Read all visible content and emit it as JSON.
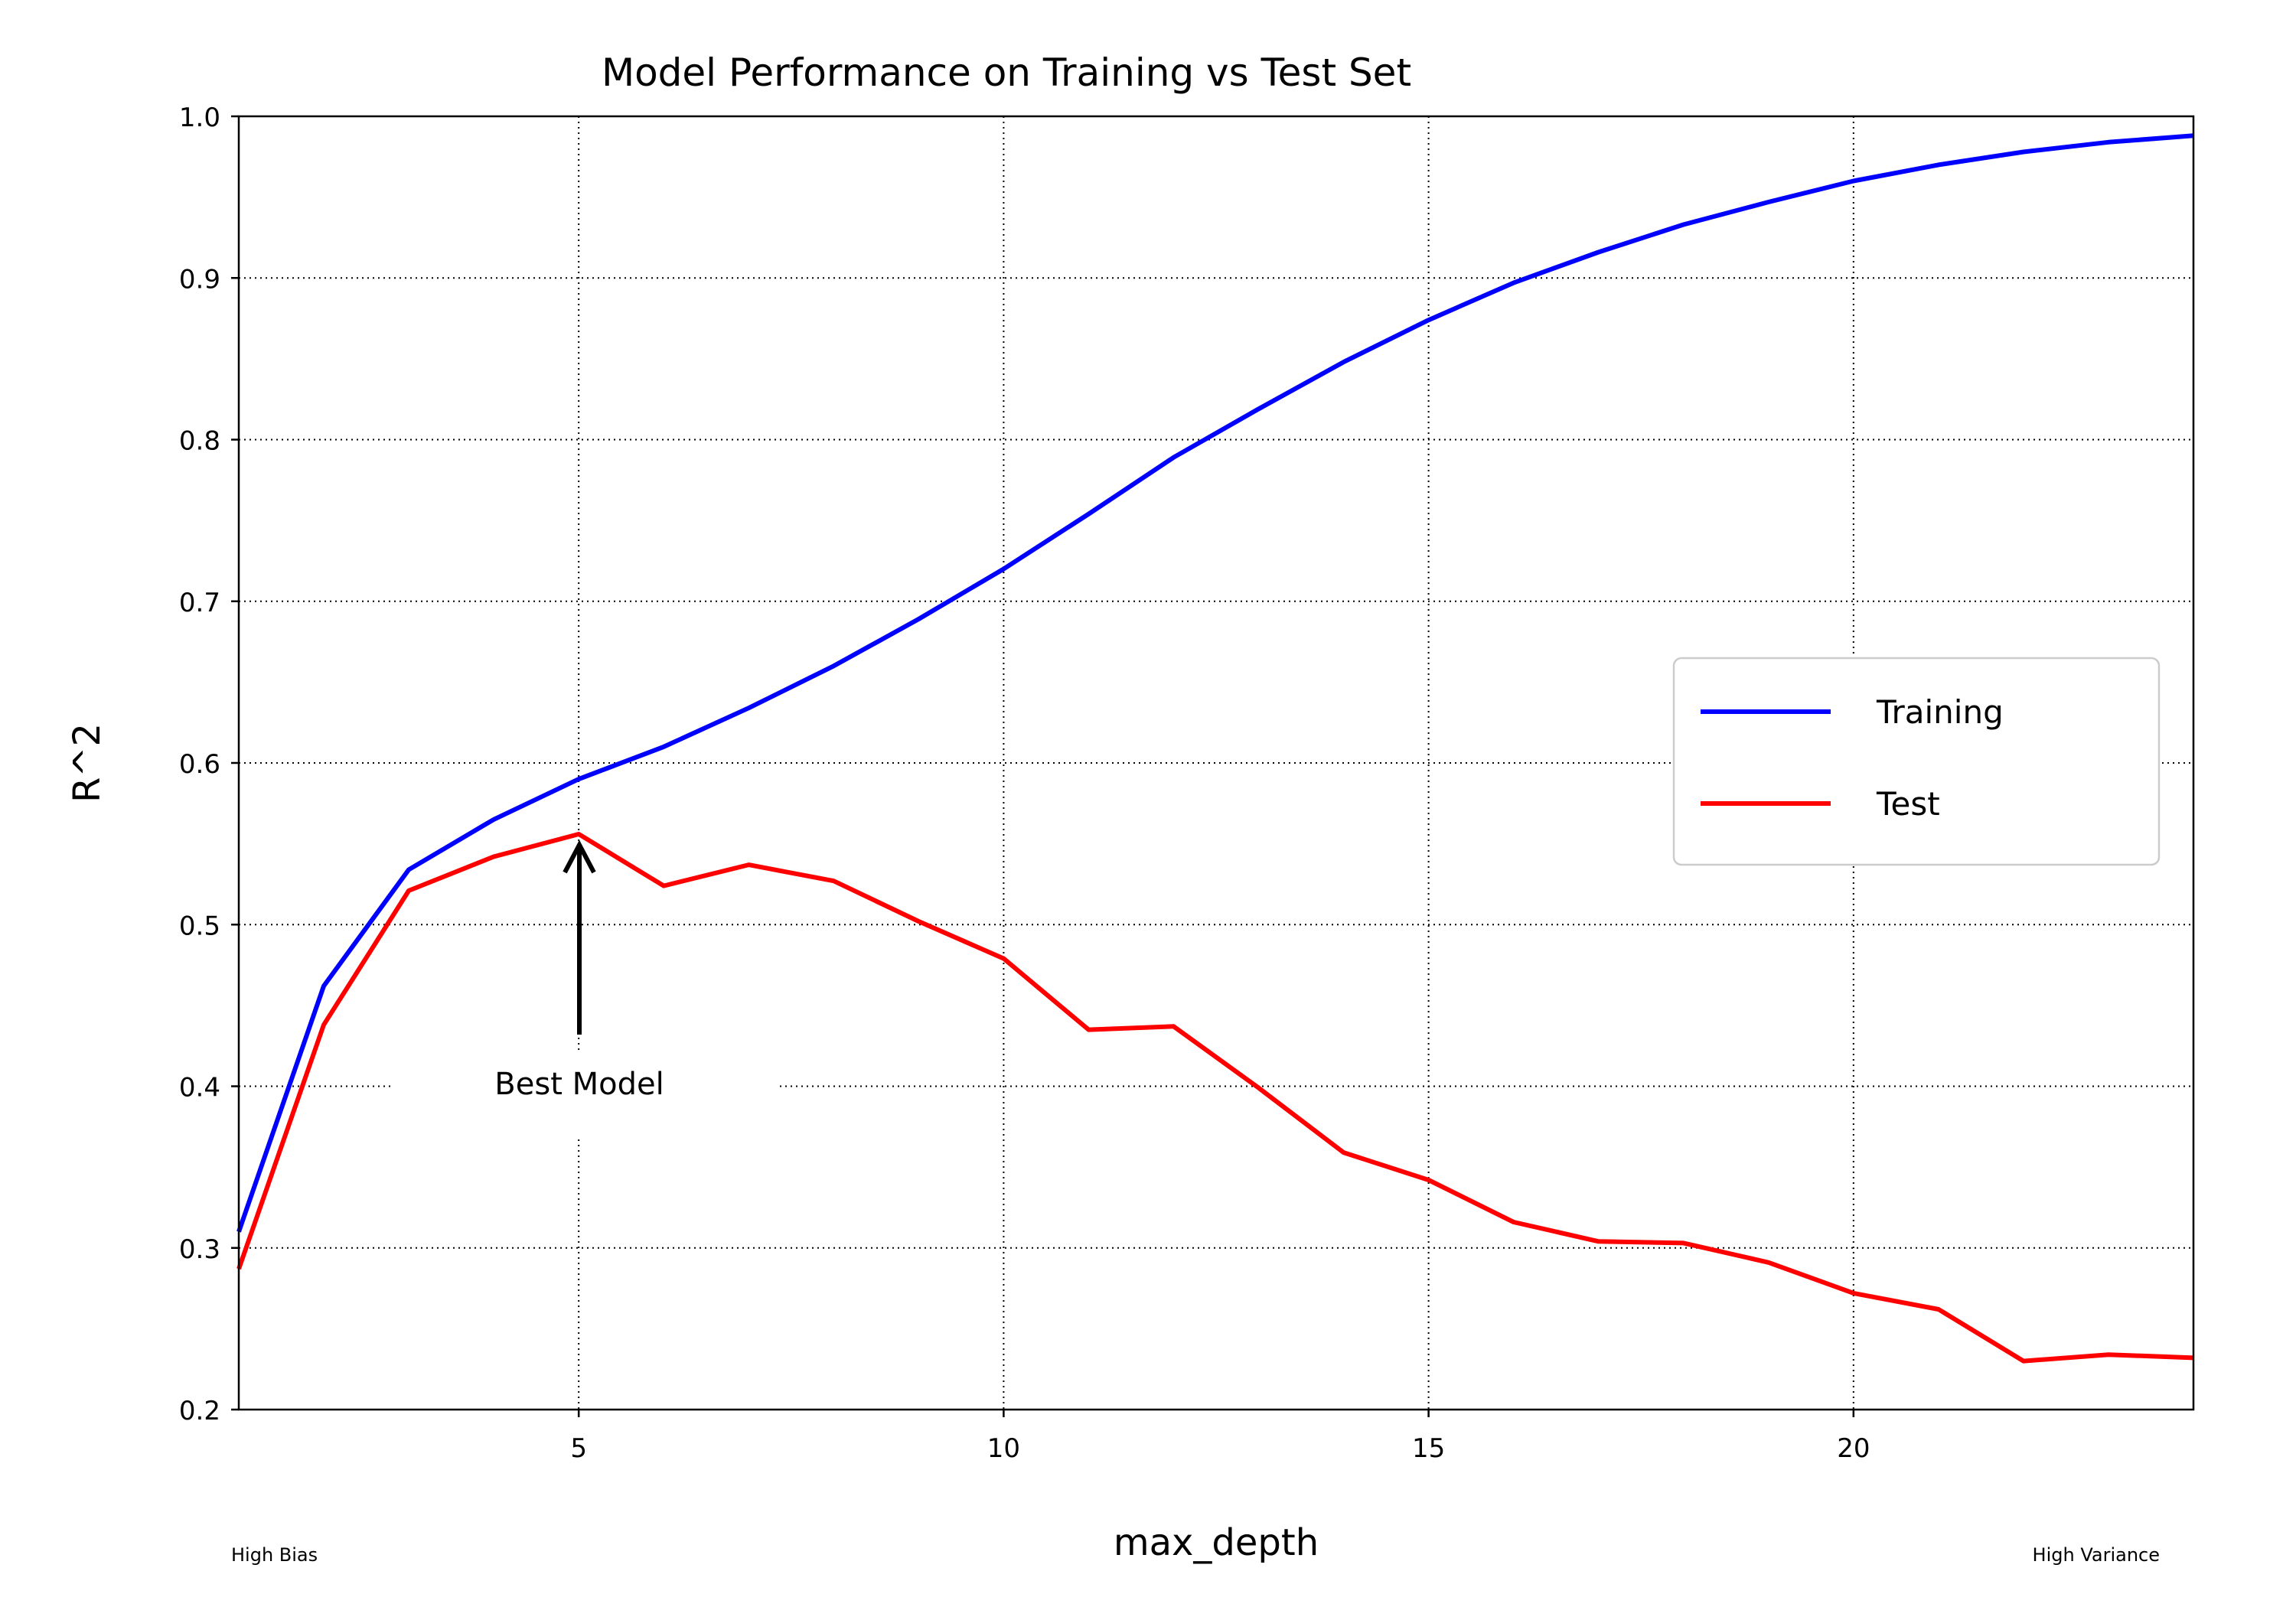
{
  "chart_data": {
    "type": "line",
    "title": "Model Performance on Training vs Test Set",
    "xlabel": "max_depth",
    "ylabel": "R^2",
    "xlim": [
      1,
      24
    ],
    "ylim": [
      0.2,
      1.0
    ],
    "x_ticks": [
      5,
      10,
      15,
      20
    ],
    "y_ticks": [
      0.2,
      0.3,
      0.4,
      0.5,
      0.6,
      0.7,
      0.8,
      0.9,
      1.0
    ],
    "y_tick_labels": [
      "0.2",
      "0.3",
      "0.4",
      "0.5",
      "0.6",
      "0.7",
      "0.8",
      "0.9",
      "1.0"
    ],
    "grid": true,
    "legend_position": "center-right",
    "x": [
      1,
      2,
      3,
      4,
      5,
      6,
      7,
      8,
      9,
      10,
      11,
      12,
      13,
      14,
      15,
      16,
      17,
      18,
      19,
      20,
      21,
      22,
      23,
      24
    ],
    "series": [
      {
        "name": "Training",
        "color": "#0000ff",
        "values": [
          0.31,
          0.462,
          0.534,
          0.565,
          0.59,
          0.61,
          0.634,
          0.66,
          0.689,
          0.72,
          0.754,
          0.789,
          0.819,
          0.848,
          0.874,
          0.897,
          0.916,
          0.933,
          0.947,
          0.96,
          0.97,
          0.978,
          0.984,
          0.988
        ]
      },
      {
        "name": "Test",
        "color": "#ff0000",
        "values": [
          0.287,
          0.438,
          0.521,
          0.542,
          0.556,
          0.524,
          0.537,
          0.527,
          0.502,
          0.479,
          0.435,
          0.437,
          0.399,
          0.359,
          0.342,
          0.316,
          0.304,
          0.303,
          0.291,
          0.272,
          0.262,
          0.23,
          0.234,
          0.232
        ]
      }
    ],
    "annotations": [
      {
        "text": "Best Model",
        "point": [
          5,
          0.556
        ]
      },
      {
        "text": "High Bias"
      },
      {
        "text": "High Variance"
      }
    ]
  }
}
